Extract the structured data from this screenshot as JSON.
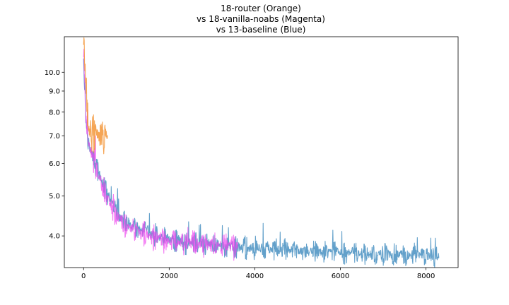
{
  "chart_data": {
    "type": "line",
    "title_lines": [
      "18-router (Orange)",
      "vs 18-vanilla-noabs (Magenta)",
      "vs 13-baseline (Blue)"
    ],
    "xlabel": "",
    "ylabel": "",
    "xlim": [
      -450,
      8750
    ],
    "ylim": [
      3.35,
      12.2
    ],
    "y_scale": "log",
    "grid": false,
    "x_ticks": [
      0,
      2000,
      4000,
      6000,
      8000
    ],
    "x_tick_labels": [
      "0",
      "2000",
      "4000",
      "6000",
      "8000"
    ],
    "y_ticks": [
      4.0,
      5.0,
      6.0,
      7.0,
      8.0,
      9.0,
      10.0
    ],
    "y_tick_labels": [
      "4.0",
      "5.0",
      "6.0",
      "7.0",
      "8.0",
      "9.0",
      "10.0"
    ],
    "series": [
      {
        "color": "#1f77b4",
        "opacity": 0.7,
        "x": [
          0,
          30,
          60,
          100,
          150,
          200,
          300,
          400,
          500,
          600,
          700,
          800,
          1000,
          1200,
          1500,
          1800,
          2000,
          2500,
          3000,
          3500,
          4000,
          4500,
          5000,
          5500,
          6000,
          6500,
          7000,
          7500,
          8000,
          8300
        ],
        "y": [
          11.0,
          9.0,
          7.6,
          6.9,
          6.5,
          6.3,
          5.9,
          5.5,
          5.2,
          4.9,
          4.7,
          4.5,
          4.3,
          4.15,
          4.05,
          3.97,
          3.92,
          3.85,
          3.8,
          3.76,
          3.73,
          3.7,
          3.68,
          3.66,
          3.64,
          3.62,
          3.61,
          3.6,
          3.59,
          3.58
        ],
        "noise": 0.045
      },
      {
        "color": "#ee44ee",
        "opacity": 0.7,
        "x": [
          0,
          30,
          60,
          100,
          150,
          200,
          300,
          400,
          500,
          600,
          700,
          800,
          1000,
          1200,
          1500,
          1800,
          2000,
          2500,
          3000,
          3300,
          3600
        ],
        "y": [
          11.2,
          9.2,
          7.7,
          6.95,
          6.5,
          6.25,
          5.85,
          5.45,
          5.15,
          4.85,
          4.6,
          4.45,
          4.25,
          4.1,
          4.0,
          3.95,
          3.9,
          3.85,
          3.8,
          3.79,
          3.77
        ],
        "noise": 0.05
      },
      {
        "color": "#f28e2b",
        "opacity": 0.8,
        "x": [
          0,
          20,
          40,
          60,
          80,
          100,
          130,
          160,
          200,
          300,
          400,
          500,
          560
        ],
        "y": [
          12.0,
          11.5,
          10.0,
          8.7,
          7.7,
          7.4,
          7.3,
          7.2,
          7.15,
          7.05,
          7.0,
          6.95,
          6.95
        ],
        "noise": 0.07
      }
    ]
  }
}
